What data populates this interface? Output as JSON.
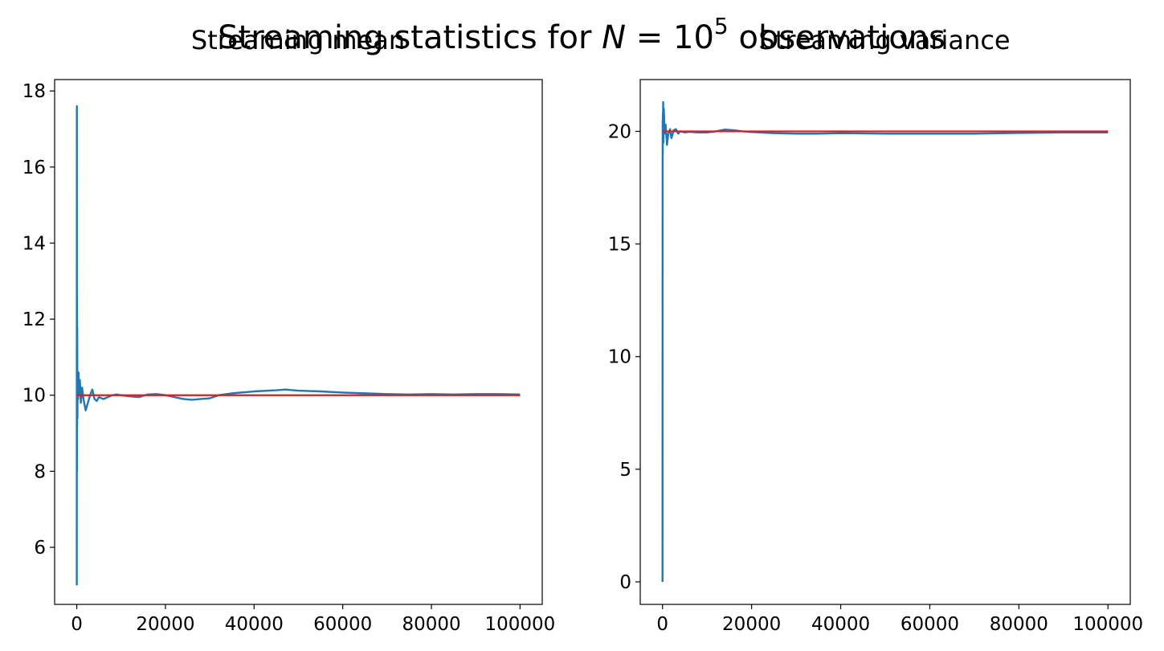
{
  "suptitle": {
    "prefix": "Streaming statistics for ",
    "var": "N",
    "equals": " = 10",
    "exponent": "5",
    "suffix": " observations"
  },
  "chart_data": [
    {
      "type": "line",
      "title": "Streaming mean",
      "xlabel": "",
      "ylabel": "",
      "xlim": [
        -5000,
        105000
      ],
      "ylim": [
        4.5,
        18.3
      ],
      "xticks": [
        0,
        20000,
        40000,
        60000,
        80000,
        100000
      ],
      "xtick_labels": [
        "0",
        "20000",
        "40000",
        "60000",
        "80000",
        "100000"
      ],
      "yticks": [
        6,
        8,
        10,
        12,
        14,
        16,
        18
      ],
      "ytick_labels": [
        "6",
        "8",
        "10",
        "12",
        "14",
        "16",
        "18"
      ],
      "grid": false,
      "series": [
        {
          "color": "#1f77b4",
          "x": [
            0,
            20,
            40,
            60,
            80,
            100,
            150,
            200,
            300,
            400,
            500,
            700,
            900,
            1200,
            1500,
            2000,
            2500,
            3000,
            3500,
            4000,
            4500,
            5000,
            6000,
            7000,
            8000,
            9000,
            10000,
            12000,
            14000,
            16000,
            18000,
            20000,
            22000,
            24000,
            26000,
            28000,
            30000,
            32000,
            35000,
            40000,
            45000,
            47000,
            50000,
            55000,
            60000,
            65000,
            70000,
            75000,
            80000,
            85000,
            90000,
            95000,
            100000
          ],
          "y": [
            5.0,
            17.6,
            8.0,
            12.6,
            9.2,
            11.8,
            9.4,
            10.6,
            9.9,
            10.6,
            10.0,
            10.4,
            9.8,
            10.2,
            9.9,
            9.6,
            9.8,
            10.0,
            10.15,
            9.9,
            9.85,
            9.95,
            9.9,
            9.95,
            10.0,
            10.02,
            10.0,
            9.97,
            9.95,
            10.02,
            10.03,
            10.0,
            9.95,
            9.9,
            9.88,
            9.9,
            9.92,
            10.0,
            10.05,
            10.1,
            10.13,
            10.15,
            10.12,
            10.1,
            10.07,
            10.05,
            10.03,
            10.02,
            10.03,
            10.02,
            10.03,
            10.03,
            10.02
          ]
        },
        {
          "color": "#e31a1c",
          "x": [
            0,
            100000
          ],
          "y": [
            10,
            10
          ]
        }
      ]
    },
    {
      "type": "line",
      "title": "Streaming variance",
      "xlabel": "",
      "ylabel": "",
      "xlim": [
        -5000,
        105000
      ],
      "ylim": [
        -1,
        22.3
      ],
      "xticks": [
        0,
        20000,
        40000,
        60000,
        80000,
        100000
      ],
      "xtick_labels": [
        "0",
        "20000",
        "40000",
        "60000",
        "80000",
        "100000"
      ],
      "yticks": [
        0,
        5,
        10,
        15,
        20
      ],
      "ytick_labels": [
        "0",
        "5",
        "10",
        "15",
        "20"
      ],
      "grid": false,
      "series": [
        {
          "color": "#1f77b4",
          "x": [
            0,
            20,
            40,
            60,
            80,
            100,
            150,
            200,
            300,
            400,
            500,
            700,
            1000,
            1300,
            1700,
            2000,
            2500,
            3000,
            3500,
            4000,
            5000,
            6000,
            8000,
            10000,
            12000,
            14000,
            16000,
            18000,
            20000,
            25000,
            30000,
            35000,
            40000,
            50000,
            60000,
            70000,
            80000,
            90000,
            100000
          ],
          "y": [
            0.0,
            15.6,
            20.5,
            19.0,
            20.8,
            19.7,
            21.3,
            19.5,
            21.0,
            20.4,
            19.9,
            20.3,
            19.4,
            19.9,
            20.1,
            19.7,
            20.05,
            20.1,
            19.9,
            20.0,
            19.95,
            19.98,
            19.95,
            19.95,
            20.0,
            20.08,
            20.05,
            20.0,
            19.97,
            19.92,
            19.9,
            19.9,
            19.92,
            19.9,
            19.9,
            19.9,
            19.93,
            19.95,
            19.95
          ]
        },
        {
          "color": "#e31a1c",
          "x": [
            0,
            100000
          ],
          "y": [
            20,
            20
          ]
        }
      ]
    }
  ]
}
